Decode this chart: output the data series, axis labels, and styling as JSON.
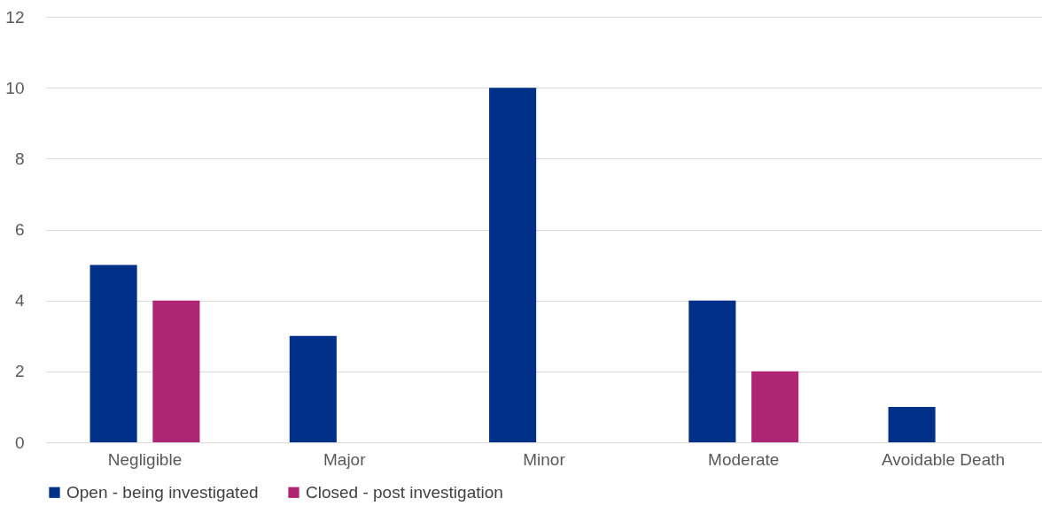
{
  "chart_data": {
    "type": "bar",
    "categories": [
      "Negligible",
      "Major",
      "Minor",
      "Moderate",
      "Avoidable Death"
    ],
    "series": [
      {
        "name": "Open - being investigated",
        "color": "#003087",
        "values": [
          5,
          3,
          10,
          4,
          1
        ]
      },
      {
        "name": "Closed - post investigation",
        "color": "#ae2573",
        "values": [
          4,
          0,
          0,
          2,
          0
        ]
      }
    ],
    "ylim": [
      0,
      12
    ],
    "yticks": [
      0,
      2,
      4,
      6,
      8,
      10,
      12
    ],
    "grid": "y",
    "legend": "bottom"
  }
}
